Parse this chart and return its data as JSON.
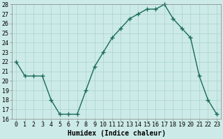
{
  "x": [
    0,
    1,
    2,
    3,
    4,
    5,
    6,
    7,
    8,
    9,
    10,
    11,
    12,
    13,
    14,
    15,
    16,
    17,
    18,
    19,
    20,
    21,
    22,
    23
  ],
  "y": [
    22,
    20.5,
    20.5,
    20.5,
    18,
    16.5,
    16.5,
    16.5,
    19,
    21.5,
    23,
    24.5,
    25.5,
    26.5,
    27,
    27.5,
    27.5,
    28,
    26.5,
    25.5,
    24.5,
    20.5,
    18,
    16.5
  ],
  "line_color": "#1a6b5a",
  "bg_color": "#cceae7",
  "grid_color": "#aad4d0",
  "xlabel": "Humidex (Indice chaleur)",
  "ylim": [
    16,
    28
  ],
  "xlim": [
    -0.5,
    23.5
  ],
  "yticks": [
    16,
    17,
    18,
    19,
    20,
    21,
    22,
    23,
    24,
    25,
    26,
    27,
    28
  ],
  "xticks": [
    0,
    1,
    2,
    3,
    4,
    5,
    6,
    7,
    8,
    9,
    10,
    11,
    12,
    13,
    14,
    15,
    16,
    17,
    18,
    19,
    20,
    21,
    22,
    23
  ],
  "marker": "+",
  "linewidth": 1.0,
  "markersize": 4,
  "tick_fontsize": 6,
  "xlabel_fontsize": 7
}
